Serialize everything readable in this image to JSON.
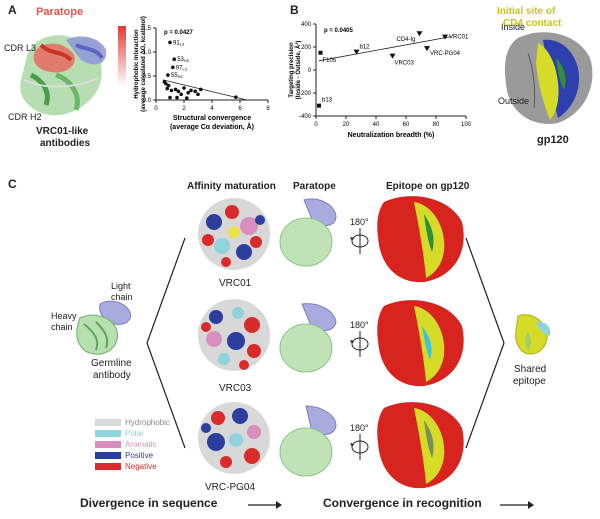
{
  "panel_a": {
    "label": "A",
    "paratope": "Paratope",
    "cdr_l3": "CDR L3",
    "cdr_h2": "CDR H2",
    "caption": "VRC01-like",
    "caption2": "antibodies"
  },
  "panel_b": {
    "label": "B",
    "initial_site": "Initial site of",
    "initial_site2": "CD4 contact",
    "inside": "Inside",
    "outside": "Outside",
    "gp120": "gp120"
  },
  "panel_c": {
    "label": "C",
    "col_affinity": "Affinity maturation",
    "col_paratope": "Paratope",
    "col_epitope": "Epitope on gp120",
    "light_chain": "Light",
    "light_chain2": "chain",
    "heavy_chain": "Heavy",
    "heavy_chain2": "chain",
    "germline": "Germline",
    "germline2": "antibody",
    "vrc01": "VRC01",
    "vrc03": "VRC03",
    "vrcpg04": "VRC-PG04",
    "deg1": "180°",
    "deg2": "180°",
    "deg3": "180°",
    "shared": "Shared",
    "shared2": "epitope",
    "divergence": "Divergence in sequence",
    "convergence": "Convergence in recognition",
    "legend": [
      {
        "label": "Hydrophobic",
        "color": "#d8d8d8"
      },
      {
        "label": "Polar",
        "color": "#8fd3dc"
      },
      {
        "label": "Aromatic",
        "color": "#d88fc0"
      },
      {
        "label": "Positive",
        "color": "#2c3e9e"
      },
      {
        "label": "Negative",
        "color": "#d92b2b"
      }
    ]
  },
  "chart_data": [
    {
      "type": "scatter",
      "title": "",
      "xlabel": "Structural convergence (average Cα deviation, Å)",
      "ylabel": "Hydrophobic interaction (average calculated ΔG, kcal/mol)",
      "ylabel_short": "Hydrophobic interaction",
      "ylabel_short2": "(average calculated ΔG, kcal/mol)",
      "xlabel_short": "Structural convergence",
      "xlabel_short2": "(average Cα deviation, Å)",
      "annotation": "p = 0.0427",
      "xlim": [
        0,
        8
      ],
      "ylim": [
        0,
        1.5
      ],
      "x_ticks": [
        "0",
        "2",
        "4",
        "6",
        "8"
      ],
      "y_ticks": [
        "0.0",
        "0.5",
        "1.0",
        "1.5"
      ],
      "points": [
        {
          "x": 1.0,
          "y": 1.2,
          "label": "91L3"
        },
        {
          "x": 1.3,
          "y": 0.85,
          "label": "53H2"
        },
        {
          "x": 1.2,
          "y": 0.68,
          "label": "97L3"
        },
        {
          "x": 0.85,
          "y": 0.52,
          "label": "55H2"
        },
        {
          "x": 0.6,
          "y": 0.38,
          "label": ""
        },
        {
          "x": 0.7,
          "y": 0.34,
          "label": ""
        },
        {
          "x": 0.9,
          "y": 0.3,
          "label": ""
        },
        {
          "x": 0.8,
          "y": 0.24,
          "label": ""
        },
        {
          "x": 1.1,
          "y": 0.2,
          "label": ""
        },
        {
          "x": 1.4,
          "y": 0.22,
          "label": ""
        },
        {
          "x": 1.6,
          "y": 0.18,
          "label": ""
        },
        {
          "x": 1.8,
          "y": 0.12,
          "label": ""
        },
        {
          "x": 2.0,
          "y": 0.25,
          "label": ""
        },
        {
          "x": 2.3,
          "y": 0.15,
          "label": ""
        },
        {
          "x": 2.5,
          "y": 0.2,
          "label": ""
        },
        {
          "x": 2.8,
          "y": 0.18,
          "label": ""
        },
        {
          "x": 3.0,
          "y": 0.12,
          "label": ""
        },
        {
          "x": 3.2,
          "y": 0.22,
          "label": ""
        },
        {
          "x": 1.0,
          "y": 0.05,
          "label": ""
        },
        {
          "x": 1.5,
          "y": 0.05,
          "label": ""
        },
        {
          "x": 2.2,
          "y": 0.04,
          "label": ""
        },
        {
          "x": 5.7,
          "y": 0.06,
          "label": ""
        }
      ],
      "fit": [
        [
          0.5,
          0.42
        ],
        [
          6.5,
          0.0
        ]
      ]
    },
    {
      "type": "scatter",
      "title": "",
      "xlabel": "Neutralization breadth (%)",
      "ylabel": "Targeting precision (Inside - Outside, Å²)",
      "ylabel_short": "Targeting precision",
      "ylabel_short2": "(Inside - Outside, Å²)",
      "annotation": "p = 0.0405",
      "xlim": [
        0,
        100
      ],
      "ylim": [
        -400,
        400
      ],
      "x_ticks": [
        "0",
        "20",
        "40",
        "60",
        "80",
        "100"
      ],
      "y_ticks": [
        "-400",
        "-200",
        "0",
        "200",
        "400"
      ],
      "points": [
        {
          "x": 3,
          "y": 150,
          "label": "F105",
          "marker": "square"
        },
        {
          "x": 2,
          "y": -310,
          "label": "b13",
          "marker": "square"
        },
        {
          "x": 27,
          "y": 160,
          "label": "b12",
          "marker": "triangle"
        },
        {
          "x": 69,
          "y": 320,
          "label": "CD4-Ig",
          "marker": "triangle"
        },
        {
          "x": 86,
          "y": 290,
          "label": "VRC01",
          "marker": "triangle"
        },
        {
          "x": 51,
          "y": 125,
          "label": "VRC03",
          "marker": "triangle"
        },
        {
          "x": 74,
          "y": 190,
          "label": "VRC-PG04",
          "marker": "triangle"
        }
      ],
      "fit": [
        [
          2,
          80
        ],
        [
          90,
          290
        ]
      ]
    }
  ]
}
